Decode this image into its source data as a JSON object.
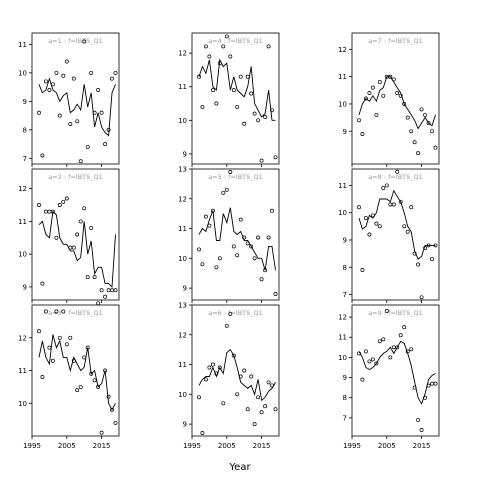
{
  "chart_data": {
    "type": "scatter",
    "xlabel": "Year",
    "xlim": [
      1995,
      2020
    ],
    "xticks": [
      1995,
      2005,
      2015
    ],
    "panels": [
      {
        "title": "a=1 : f=IBTS_Q1",
        "ylim": [
          6.8,
          11.4
        ],
        "yticks": [
          7,
          8,
          9,
          10,
          11
        ],
        "x": [
          1997,
          1998,
          1999,
          2000,
          2001,
          2002,
          2003,
          2004,
          2005,
          2006,
          2007,
          2008,
          2009,
          2010,
          2011,
          2012,
          2013,
          2014,
          2015,
          2016,
          2017,
          2018,
          2019
        ],
        "points": [
          8.6,
          7.1,
          9.7,
          9.4,
          9.6,
          10.0,
          8.5,
          9.9,
          10.4,
          8.2,
          9.8,
          8.3,
          6.9,
          11.1,
          7.4,
          10.0,
          8.6,
          9.4,
          8.6,
          7.5,
          8.0,
          9.8,
          10.0
        ],
        "fit": [
          9.6,
          9.3,
          9.4,
          9.8,
          9.4,
          9.3,
          9.0,
          9.2,
          9.3,
          8.6,
          8.7,
          8.9,
          8.7,
          9.6,
          8.8,
          9.3,
          8.1,
          8.6,
          8.1,
          7.9,
          7.8,
          9.3,
          9.6
        ]
      },
      {
        "title": "a=2 : f=IBTS_Q1",
        "ylim": [
          8.6,
          12.6
        ],
        "yticks": [
          9,
          10,
          11,
          12
        ],
        "x": [
          1997,
          1998,
          1999,
          2000,
          2001,
          2002,
          2003,
          2004,
          2005,
          2006,
          2007,
          2008,
          2009,
          2010,
          2011,
          2012,
          2013,
          2014,
          2015,
          2016,
          2017,
          2018,
          2019
        ],
        "points": [
          11.5,
          9.1,
          11.3,
          11.3,
          11.3,
          10.5,
          11.5,
          11.6,
          11.7,
          10.2,
          10.2,
          10.6,
          11.0,
          11.4,
          9.3,
          10.8,
          9.3,
          8.5,
          8.9,
          8.7,
          8.9,
          8.9,
          8.9
        ],
        "fit": [
          10.9,
          11.0,
          10.6,
          10.5,
          11.3,
          11.2,
          10.5,
          10.3,
          10.3,
          10.1,
          10.1,
          9.8,
          9.9,
          11.0,
          10.0,
          10.4,
          9.4,
          9.6,
          9.6,
          9.1,
          9.1,
          9.0,
          10.6
        ]
      },
      {
        "title": "a=3 : f=IBTS_Q1",
        "ylim": [
          9.0,
          13.0
        ],
        "yticks": [
          10,
          11,
          12
        ],
        "x": [
          1997,
          1998,
          1999,
          2000,
          2001,
          2002,
          2003,
          2004,
          2005,
          2006,
          2007,
          2008,
          2009,
          2010,
          2011,
          2012,
          2013,
          2014,
          2015,
          2016,
          2017,
          2018,
          2019
        ],
        "points": [
          12.2,
          10.8,
          12.8,
          11.7,
          11.3,
          12.8,
          12.0,
          12.8,
          11.8,
          12.0,
          11.3,
          10.4,
          10.5,
          11.4,
          11.7,
          10.9,
          10.7,
          10.5,
          9.1,
          11.0,
          10.2,
          9.8,
          9.4
        ],
        "fit": [
          11.4,
          11.9,
          11.4,
          11.2,
          12.1,
          11.7,
          11.9,
          11.4,
          11.4,
          11.0,
          11.4,
          11.2,
          11.0,
          11.1,
          11.7,
          10.9,
          11.0,
          10.5,
          10.6,
          11.0,
          10.0,
          9.8,
          10.0
        ]
      },
      {
        "title": "a=4 : f=IBTS_Q1",
        "ylim": [
          8.7,
          12.6
        ],
        "yticks": [
          9,
          10,
          11,
          12
        ],
        "x": [
          1997,
          1998,
          1999,
          2000,
          2001,
          2002,
          2003,
          2004,
          2005,
          2006,
          2007,
          2008,
          2009,
          2010,
          2011,
          2012,
          2013,
          2014,
          2015,
          2016,
          2017,
          2018,
          2019
        ],
        "points": [
          11.3,
          10.4,
          12.2,
          11.9,
          10.9,
          10.5,
          11.7,
          12.2,
          12.5,
          11.9,
          10.9,
          10.4,
          11.3,
          9.9,
          11.3,
          10.8,
          10.2,
          10.0,
          8.8,
          10.1,
          12.2,
          10.3,
          8.9
        ],
        "fit": [
          11.3,
          11.6,
          11.4,
          11.8,
          11.0,
          10.9,
          11.8,
          11.6,
          11.7,
          10.9,
          11.3,
          10.9,
          10.8,
          10.7,
          11.0,
          11.6,
          10.5,
          10.3,
          10.1,
          10.2,
          10.9,
          10.0,
          10.0
        ]
      },
      {
        "title": "a=5 : f=IBTS_Q1",
        "ylim": [
          8.6,
          13.0
        ],
        "yticks": [
          9,
          10,
          11,
          12,
          13
        ],
        "x": [
          1997,
          1998,
          1999,
          2000,
          2001,
          2002,
          2003,
          2004,
          2005,
          2006,
          2007,
          2008,
          2009,
          2010,
          2011,
          2012,
          2013,
          2014,
          2015,
          2016,
          2017,
          2018,
          2019
        ],
        "points": [
          10.3,
          9.8,
          11.4,
          11.1,
          11.6,
          9.7,
          10.0,
          12.2,
          12.3,
          12.9,
          10.4,
          10.1,
          11.3,
          10.7,
          10.5,
          10.4,
          10.0,
          10.7,
          9.3,
          9.6,
          10.7,
          11.6,
          8.8
        ],
        "fit": [
          10.8,
          11.0,
          10.9,
          11.3,
          11.6,
          10.6,
          10.6,
          11.5,
          11.2,
          11.7,
          10.9,
          10.8,
          10.9,
          10.6,
          10.6,
          10.4,
          10.2,
          10.0,
          10.0,
          9.6,
          10.4,
          10.4,
          9.6
        ]
      },
      {
        "title": "a=6 : f=IBTS_Q1",
        "ylim": [
          8.6,
          13.0
        ],
        "yticks": [
          9,
          10,
          11,
          12,
          13
        ],
        "x": [
          1997,
          1998,
          1999,
          2000,
          2001,
          2002,
          2003,
          2004,
          2005,
          2006,
          2007,
          2008,
          2009,
          2010,
          2011,
          2012,
          2013,
          2014,
          2015,
          2016,
          2017,
          2018,
          2019
        ],
        "points": [
          9.9,
          8.7,
          10.5,
          10.9,
          11.0,
          10.7,
          10.9,
          9.7,
          12.3,
          12.7,
          11.3,
          10.0,
          10.6,
          10.8,
          9.5,
          10.6,
          9.0,
          9.9,
          9.4,
          9.6,
          10.4,
          10.3,
          9.5
        ],
        "fit": [
          10.3,
          10.5,
          10.6,
          10.6,
          10.9,
          10.6,
          10.9,
          10.7,
          11.4,
          11.5,
          11.3,
          10.9,
          10.4,
          10.3,
          10.2,
          10.3,
          10.0,
          10.5,
          9.8,
          9.9,
          10.1,
          10.2,
          10.4
        ]
      },
      {
        "title": "a=7 : f=IBTS_Q1",
        "ylim": [
          7.8,
          12.6
        ],
        "yticks": [
          9,
          10,
          11,
          12
        ],
        "x": [
          1997,
          1998,
          1999,
          2000,
          2001,
          2002,
          2003,
          2004,
          2005,
          2006,
          2007,
          2008,
          2009,
          2010,
          2011,
          2012,
          2013,
          2014,
          2015,
          2016,
          2017,
          2018,
          2019
        ],
        "points": [
          9.4,
          8.9,
          10.2,
          10.4,
          10.6,
          9.6,
          10.8,
          10.3,
          11.0,
          11.0,
          10.9,
          10.4,
          10.3,
          10.0,
          9.5,
          9.0,
          8.6,
          8.2,
          9.8,
          9.6,
          9.3,
          9.0,
          8.4
        ],
        "fit": [
          9.6,
          10.0,
          10.2,
          10.1,
          10.3,
          10.1,
          10.5,
          10.6,
          11.0,
          11.0,
          10.8,
          10.6,
          10.4,
          10.0,
          9.8,
          9.6,
          9.4,
          9.1,
          9.3,
          9.5,
          9.3,
          9.2,
          9.6
        ]
      },
      {
        "title": "a=8 : f=IBTS_Q1",
        "ylim": [
          6.8,
          11.6
        ],
        "yticks": [
          7,
          8,
          9,
          10,
          11
        ],
        "x": [
          1997,
          1998,
          1999,
          2000,
          2001,
          2002,
          2003,
          2004,
          2005,
          2006,
          2007,
          2008,
          2009,
          2010,
          2011,
          2012,
          2013,
          2014,
          2015,
          2016,
          2017,
          2018,
          2019
        ],
        "points": [
          10.2,
          7.9,
          9.8,
          9.2,
          9.9,
          9.6,
          9.5,
          10.9,
          11.0,
          10.3,
          10.3,
          11.5,
          10.4,
          9.5,
          9.3,
          10.2,
          8.5,
          8.1,
          6.9,
          8.7,
          8.8,
          8.3,
          8.8
        ],
        "fit": [
          9.8,
          9.4,
          9.5,
          9.9,
          9.8,
          10.0,
          10.5,
          10.5,
          10.5,
          10.4,
          10.8,
          10.6,
          10.4,
          10.0,
          9.5,
          9.3,
          8.6,
          8.3,
          8.4,
          8.8,
          8.8,
          8.8,
          8.8
        ]
      },
      {
        "title": "a=9 : f=IBTS_Q1",
        "ylim": [
          6.1,
          12.6
        ],
        "yticks": [
          7,
          8,
          9,
          10,
          11,
          12
        ],
        "x": [
          1997,
          1998,
          1999,
          2000,
          2001,
          2002,
          2003,
          2004,
          2005,
          2006,
          2007,
          2008,
          2009,
          2010,
          2011,
          2012,
          2013,
          2014,
          2015,
          2016,
          2017,
          2018,
          2019
        ],
        "points": [
          10.2,
          8.9,
          10.3,
          9.8,
          9.9,
          9.7,
          10.8,
          10.9,
          12.3,
          10.0,
          10.5,
          10.5,
          11.1,
          11.5,
          10.3,
          10.4,
          8.5,
          6.9,
          6.4,
          8.0,
          8.6,
          8.7,
          8.7
        ],
        "fit": [
          10.3,
          10.0,
          9.5,
          9.4,
          9.5,
          9.7,
          10.0,
          10.2,
          10.3,
          10.5,
          10.2,
          10.5,
          10.8,
          10.7,
          10.2,
          9.6,
          8.8,
          8.0,
          7.7,
          8.2,
          8.9,
          9.1,
          9.2
        ]
      }
    ]
  }
}
